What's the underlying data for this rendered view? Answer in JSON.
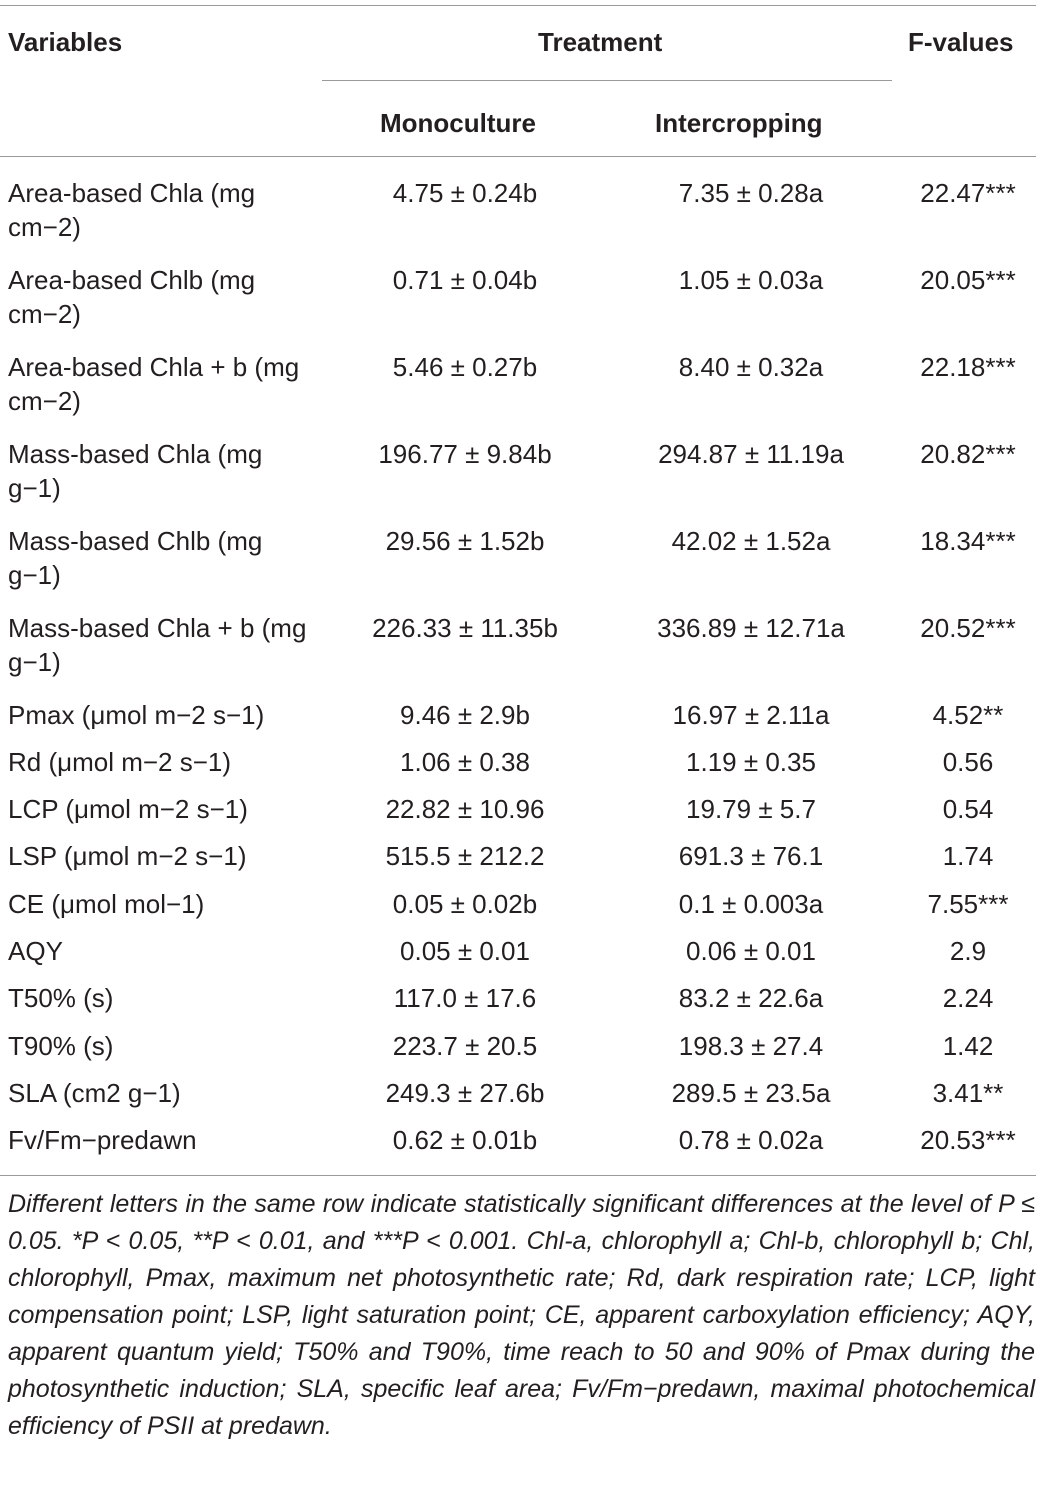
{
  "header": {
    "variables": "Variables",
    "treatment": "Treatment",
    "f_values": "F-values",
    "monoculture": "Monoculture",
    "intercropping": "Intercropping"
  },
  "rows": [
    {
      "variable": "Area-based Chla (mg cm−2)",
      "monoculture": "4.75 ± 0.24b",
      "intercropping": "7.35 ± 0.28a",
      "f_value": "22.47***"
    },
    {
      "variable": "Area-based Chlb (mg cm−2)",
      "monoculture": "0.71 ± 0.04b",
      "intercropping": "1.05 ± 0.03a",
      "f_value": "20.05***"
    },
    {
      "variable": "Area-based Chla + b (mg cm−2)",
      "monoculture": "5.46 ± 0.27b",
      "intercropping": "8.40 ± 0.32a",
      "f_value": "22.18***"
    },
    {
      "variable": "Mass-based Chla (mg g−1)",
      "monoculture": "196.77 ± 9.84b",
      "intercropping": "294.87 ± 11.19a",
      "f_value": "20.82***"
    },
    {
      "variable": "Mass-based Chlb (mg g−1)",
      "monoculture": "29.56 ± 1.52b",
      "intercropping": "42.02 ± 1.52a",
      "f_value": "18.34***"
    },
    {
      "variable": "Mass-based Chla + b (mg g−1)",
      "monoculture": "226.33 ± 11.35b",
      "intercropping": "336.89 ± 12.71a",
      "f_value": "20.52***"
    },
    {
      "variable": "Pmax (μmol m−2 s−1)",
      "monoculture": "9.46 ± 2.9b",
      "intercropping": "16.97 ± 2.11a",
      "f_value": "4.52**"
    },
    {
      "variable": "Rd (μmol m−2 s−1)",
      "monoculture": "1.06 ± 0.38",
      "intercropping": "1.19 ± 0.35",
      "f_value": "0.56"
    },
    {
      "variable": "LCP (μmol m−2 s−1)",
      "monoculture": "22.82 ± 10.96",
      "intercropping": "19.79 ± 5.7",
      "f_value": "0.54"
    },
    {
      "variable": "LSP (μmol m−2 s−1)",
      "monoculture": "515.5 ± 212.2",
      "intercropping": "691.3 ± 76.1",
      "f_value": "1.74"
    },
    {
      "variable": "CE (μmol mol−1)",
      "monoculture": "0.05 ± 0.02b",
      "intercropping": "0.1 ± 0.003a",
      "f_value": "7.55***"
    },
    {
      "variable": "AQY",
      "monoculture": "0.05 ± 0.01",
      "intercropping": "0.06 ± 0.01",
      "f_value": "2.9"
    },
    {
      "variable": "T50% (s)",
      "monoculture": "117.0 ± 17.6",
      "intercropping": "83.2 ± 22.6a",
      "f_value": "2.24"
    },
    {
      "variable": "T90% (s)",
      "monoculture": "223.7 ± 20.5",
      "intercropping": "198.3 ± 27.4",
      "f_value": "1.42"
    },
    {
      "variable": "SLA (cm2 g−1)",
      "monoculture": "249.3 ± 27.6b",
      "intercropping": "289.5 ± 23.5a",
      "f_value": "3.41**"
    },
    {
      "variable": "Fv/Fm−predawn",
      "monoculture": "0.62 ± 0.01b",
      "intercropping": "0.78 ± 0.02a",
      "f_value": "20.53***"
    }
  ],
  "footnote": "Different letters in the same row indicate statistically significant differences at the level of P ≤ 0.05. *P < 0.05, **P < 0.01, and ***P < 0.001. Chl-a, chlorophyll a; Chl-b, chlorophyll b; Chl, chlorophyll, Pmax, maximum net photosynthetic rate; Rd, dark respiration rate; LCP, light compensation point; LSP, light saturation point; CE, apparent carboxylation efficiency; AQY, apparent quantum yield; T50% and T90%, time reach to 50 and 90% of Pmax during the photosynthetic induction; SLA, specific leaf area; Fv/Fm−predawn, maximal photochemical efficiency of PSII at predawn."
}
